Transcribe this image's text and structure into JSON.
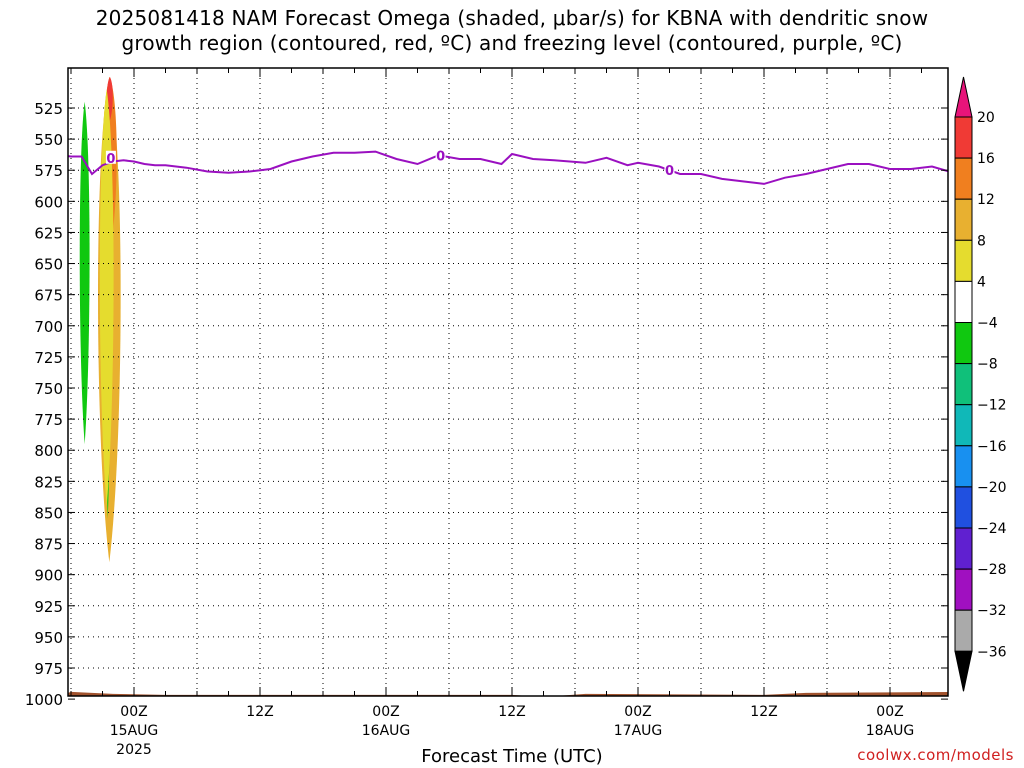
{
  "title": {
    "line1": "2025081418 NAM Forecast Omega (shaded, μbar/s) for KBNA with dendritic snow",
    "line2": "growth region (contoured, red, ºC) and freezing level (contoured, purple, ºC)"
  },
  "credit": "coolwx.com/models",
  "chart_data": {
    "type": "heatmap",
    "title": "2025081418 NAM Forecast Omega (shaded, μbar/s) for KBNA with dendritic snow growth region (contoured, red, ºC) and freezing level (contoured, purple, ºC)",
    "xlabel": "Forecast Time (UTC)",
    "ylabel": "",
    "x_hours_range": [
      -12,
      72
    ],
    "ylim": [
      500,
      1005
    ],
    "y_ticks": [
      "525",
      "550",
      "575",
      "600",
      "625",
      "650",
      "675",
      "700",
      "725",
      "750",
      "775",
      "800",
      "825",
      "850",
      "875",
      "900",
      "925",
      "950",
      "975",
      "1000"
    ],
    "x_ticks": [
      {
        "hour": 0,
        "label": "00Z",
        "sub": "15AUG",
        "sub2": "2025"
      },
      {
        "hour": 12,
        "label": "12Z",
        "sub": "",
        "sub2": ""
      },
      {
        "hour": 24,
        "label": "00Z",
        "sub": "16AUG",
        "sub2": ""
      },
      {
        "hour": 36,
        "label": "12Z",
        "sub": "",
        "sub2": ""
      },
      {
        "hour": 48,
        "label": "00Z",
        "sub": "17AUG",
        "sub2": ""
      },
      {
        "hour": 60,
        "label": "12Z",
        "sub": "",
        "sub2": ""
      },
      {
        "hour": 72,
        "label": "00Z",
        "sub": "18AUG",
        "sub2": ""
      }
    ],
    "grid": true,
    "colorbar": {
      "labels": [
        "20",
        "16",
        "12",
        "8",
        "4",
        "−4",
        "−8",
        "−12",
        "−16",
        "−20",
        "−24",
        "−28",
        "−32",
        "−36"
      ],
      "colors": [
        "#e8147a",
        "#f03a35",
        "#f07f1f",
        "#e8b030",
        "#e5dc2e",
        "#ffffff",
        "#10c810",
        "#10c07a",
        "#10b8b8",
        "#1890f0",
        "#2050e0",
        "#6020d0",
        "#a010c0",
        "#aaaaaa",
        "#000000"
      ]
    },
    "freezing_level": {
      "color": "#9a10c0",
      "label": "0",
      "hours": [
        -12,
        -10,
        -9,
        -8,
        -7,
        -6,
        -5,
        -4,
        -3,
        -2,
        -1,
        0,
        1,
        2,
        3,
        5,
        7,
        9,
        11,
        13,
        15,
        17,
        19,
        21,
        23,
        25,
        27,
        29,
        31,
        33,
        35,
        36,
        38,
        40,
        43,
        45,
        47,
        48,
        50,
        52,
        54,
        56,
        58,
        60,
        62,
        64,
        66,
        68,
        70,
        72,
        74,
        76,
        78,
        80
      ],
      "pressure": [
        570,
        570,
        567,
        566,
        563,
        564,
        564,
        578,
        571,
        568,
        567,
        568,
        570,
        571,
        571,
        573,
        576,
        577,
        576,
        574,
        568,
        564,
        561,
        561,
        560,
        566,
        570,
        563,
        566,
        566,
        570,
        562,
        566,
        567,
        569,
        565,
        571,
        569,
        572,
        578,
        578,
        582,
        584,
        586,
        581,
        578,
        574,
        570,
        570,
        574,
        574,
        572,
        577,
        582
      ]
    },
    "omega_regions": [
      {
        "value": "4 to 8",
        "color": "#e5dc2e",
        "hours_approx": [
          -7.5,
          -6.5
        ],
        "pressure": [
          500,
          625
        ]
      },
      {
        "value": "-4 to -8",
        "color": "#10c810",
        "hours_approx": [
          -5.2,
          -4.2
        ],
        "pressure": [
          520,
          795
        ]
      },
      {
        "value": "4 to 20",
        "color": "#e8b030",
        "hours_approx": [
          -3.5,
          -1.2
        ],
        "pressure": [
          500,
          890
        ]
      },
      {
        "value": "-4 to -8",
        "color": "#10c810",
        "hours_approx": [
          -2.8,
          -2.2
        ],
        "pressure": [
          540,
          855
        ]
      },
      {
        "value": "4 to 8",
        "color": "#e5dc2e",
        "hours_approx": [
          -8.2,
          -6.6
        ],
        "pressure": [
          700,
          815
        ]
      },
      {
        "value": "4 to 8",
        "color": "#e5dc2e",
        "hours_approx": [
          -10.7,
          -10.1
        ],
        "pressure": [
          855,
          910
        ]
      }
    ],
    "terrain": {
      "color": "#a0522d",
      "pressure_top": 995
    }
  },
  "xaxis_title": "Forecast Time (UTC)"
}
